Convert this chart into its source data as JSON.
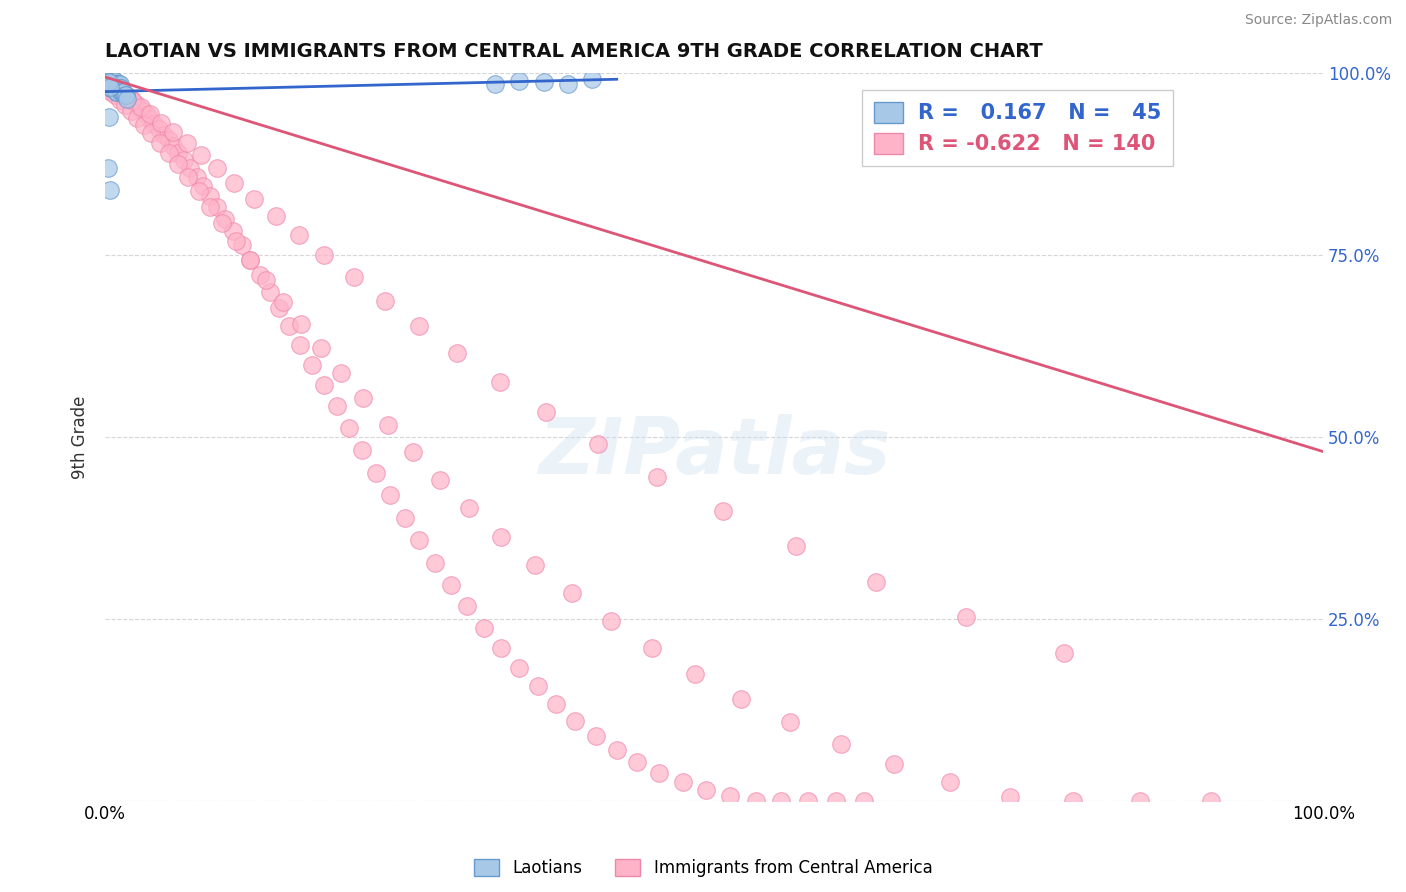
{
  "title": "LAOTIAN VS IMMIGRANTS FROM CENTRAL AMERICA 9TH GRADE CORRELATION CHART",
  "source": "Source: ZipAtlas.com",
  "ylabel": "9th Grade",
  "xlim": [
    0,
    1
  ],
  "ylim": [
    0,
    1
  ],
  "watermark": "ZIPatlas",
  "laotian_color": "#a8c8e8",
  "laotian_edge": "#6699cc",
  "central_america_color": "#ffb3c8",
  "central_america_edge": "#ee88aa",
  "blue_line_color": "#3366cc",
  "pink_line_color": "#dd5577",
  "background_color": "#ffffff",
  "grid_color": "#cccccc",
  "blue_line_x0": 0.0,
  "blue_line_x1": 0.42,
  "blue_line_y0": 0.975,
  "blue_line_y1": 0.992,
  "pink_line_x0": 0.0,
  "pink_line_x1": 1.0,
  "pink_line_y0": 0.995,
  "pink_line_y1": 0.48,
  "laotian_x": [
    0.002,
    0.003,
    0.003,
    0.004,
    0.004,
    0.005,
    0.005,
    0.005,
    0.006,
    0.006,
    0.007,
    0.007,
    0.007,
    0.008,
    0.008,
    0.008,
    0.009,
    0.009,
    0.009,
    0.01,
    0.01,
    0.01,
    0.011,
    0.011,
    0.012,
    0.012,
    0.013,
    0.013,
    0.014,
    0.015,
    0.016,
    0.017,
    0.018,
    0.001,
    0.002,
    0.003,
    0.004,
    0.003,
    0.002,
    0.004,
    0.32,
    0.34,
    0.36,
    0.38,
    0.4
  ],
  "laotian_y": [
    0.99,
    0.99,
    0.985,
    0.99,
    0.985,
    0.99,
    0.985,
    0.98,
    0.99,
    0.985,
    0.99,
    0.985,
    0.98,
    0.99,
    0.985,
    0.98,
    0.985,
    0.98,
    0.975,
    0.985,
    0.98,
    0.975,
    0.985,
    0.98,
    0.985,
    0.98,
    0.98,
    0.975,
    0.975,
    0.975,
    0.97,
    0.97,
    0.965,
    0.99,
    0.988,
    0.988,
    0.982,
    0.94,
    0.87,
    0.84,
    0.985,
    0.99,
    0.988,
    0.985,
    0.992
  ],
  "central_america_x": [
    0.002,
    0.004,
    0.006,
    0.008,
    0.01,
    0.012,
    0.014,
    0.016,
    0.018,
    0.02,
    0.022,
    0.025,
    0.028,
    0.031,
    0.034,
    0.037,
    0.04,
    0.044,
    0.048,
    0.052,
    0.056,
    0.06,
    0.065,
    0.07,
    0.075,
    0.08,
    0.086,
    0.092,
    0.098,
    0.105,
    0.112,
    0.119,
    0.127,
    0.135,
    0.143,
    0.151,
    0.16,
    0.17,
    0.18,
    0.19,
    0.2,
    0.211,
    0.222,
    0.234,
    0.246,
    0.258,
    0.271,
    0.284,
    0.297,
    0.311,
    0.325,
    0.34,
    0.355,
    0.37,
    0.386,
    0.403,
    0.42,
    0.437,
    0.455,
    0.474,
    0.493,
    0.513,
    0.534,
    0.555,
    0.577,
    0.6,
    0.623,
    0.002,
    0.005,
    0.008,
    0.012,
    0.016,
    0.021,
    0.026,
    0.032,
    0.038,
    0.045,
    0.052,
    0.06,
    0.068,
    0.077,
    0.086,
    0.096,
    0.107,
    0.119,
    0.132,
    0.146,
    0.161,
    0.177,
    0.194,
    0.212,
    0.232,
    0.253,
    0.275,
    0.299,
    0.325,
    0.353,
    0.383,
    0.415,
    0.449,
    0.484,
    0.522,
    0.562,
    0.604,
    0.648,
    0.694,
    0.743,
    0.795,
    0.85,
    0.908,
    0.003,
    0.007,
    0.011,
    0.016,
    0.022,
    0.029,
    0.037,
    0.046,
    0.056,
    0.067,
    0.079,
    0.092,
    0.106,
    0.122,
    0.14,
    0.159,
    0.18,
    0.204,
    0.23,
    0.258,
    0.289,
    0.324,
    0.362,
    0.405,
    0.453,
    0.507,
    0.567,
    0.633,
    0.707,
    0.787
  ],
  "central_america_y": [
    0.993,
    0.99,
    0.987,
    0.984,
    0.981,
    0.978,
    0.975,
    0.972,
    0.969,
    0.966,
    0.963,
    0.958,
    0.953,
    0.948,
    0.943,
    0.937,
    0.931,
    0.924,
    0.916,
    0.908,
    0.9,
    0.891,
    0.881,
    0.87,
    0.858,
    0.845,
    0.831,
    0.816,
    0.8,
    0.783,
    0.764,
    0.744,
    0.723,
    0.7,
    0.677,
    0.652,
    0.626,
    0.599,
    0.571,
    0.542,
    0.512,
    0.482,
    0.451,
    0.42,
    0.389,
    0.358,
    0.327,
    0.297,
    0.267,
    0.238,
    0.21,
    0.183,
    0.157,
    0.133,
    0.11,
    0.089,
    0.07,
    0.053,
    0.038,
    0.025,
    0.014,
    0.006,
    0.0,
    0.0,
    0.0,
    0.0,
    0.0,
    0.98,
    0.975,
    0.97,
    0.963,
    0.956,
    0.948,
    0.939,
    0.929,
    0.918,
    0.905,
    0.891,
    0.875,
    0.857,
    0.838,
    0.817,
    0.794,
    0.77,
    0.744,
    0.716,
    0.686,
    0.655,
    0.622,
    0.588,
    0.553,
    0.516,
    0.479,
    0.441,
    0.402,
    0.363,
    0.324,
    0.285,
    0.247,
    0.21,
    0.174,
    0.14,
    0.108,
    0.078,
    0.051,
    0.026,
    0.005,
    0.0,
    0.0,
    0.0,
    0.988,
    0.983,
    0.977,
    0.97,
    0.963,
    0.954,
    0.944,
    0.932,
    0.919,
    0.904,
    0.888,
    0.87,
    0.85,
    0.828,
    0.804,
    0.778,
    0.75,
    0.72,
    0.687,
    0.652,
    0.615,
    0.575,
    0.534,
    0.49,
    0.445,
    0.398,
    0.35,
    0.301,
    0.252,
    0.203
  ]
}
